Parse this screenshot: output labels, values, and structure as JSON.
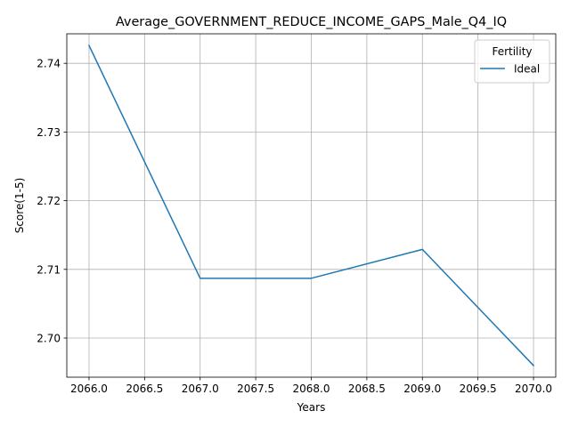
{
  "chart_data": {
    "type": "line",
    "title": "Average_GOVERNMENT_REDUCE_INCOME_GAPS_Male_Q4_IQ",
    "xlabel": "Years",
    "ylabel": "Score(1-5)",
    "x": [
      2066,
      2067,
      2068,
      2069,
      2070
    ],
    "series": [
      {
        "name": "Ideal",
        "values": [
          2.7426,
          2.7087,
          2.7087,
          2.7129,
          2.696
        ],
        "color": "#1f77b4"
      }
    ],
    "xlim": [
      2065.8,
      2070.2
    ],
    "ylim": [
      2.6943,
      2.7443
    ],
    "xticks": [
      2066.0,
      2066.5,
      2067.0,
      2067.5,
      2068.0,
      2068.5,
      2069.0,
      2069.5,
      2070.0
    ],
    "xtick_labels": [
      "2066.0",
      "2066.5",
      "2067.0",
      "2067.5",
      "2068.0",
      "2068.5",
      "2069.0",
      "2069.5",
      "2070.0"
    ],
    "yticks": [
      2.7,
      2.71,
      2.72,
      2.73,
      2.74
    ],
    "ytick_labels": [
      "2.70",
      "2.71",
      "2.72",
      "2.73",
      "2.74"
    ],
    "grid": true,
    "legend": {
      "title": "Fertility",
      "placement": "top-right"
    }
  }
}
